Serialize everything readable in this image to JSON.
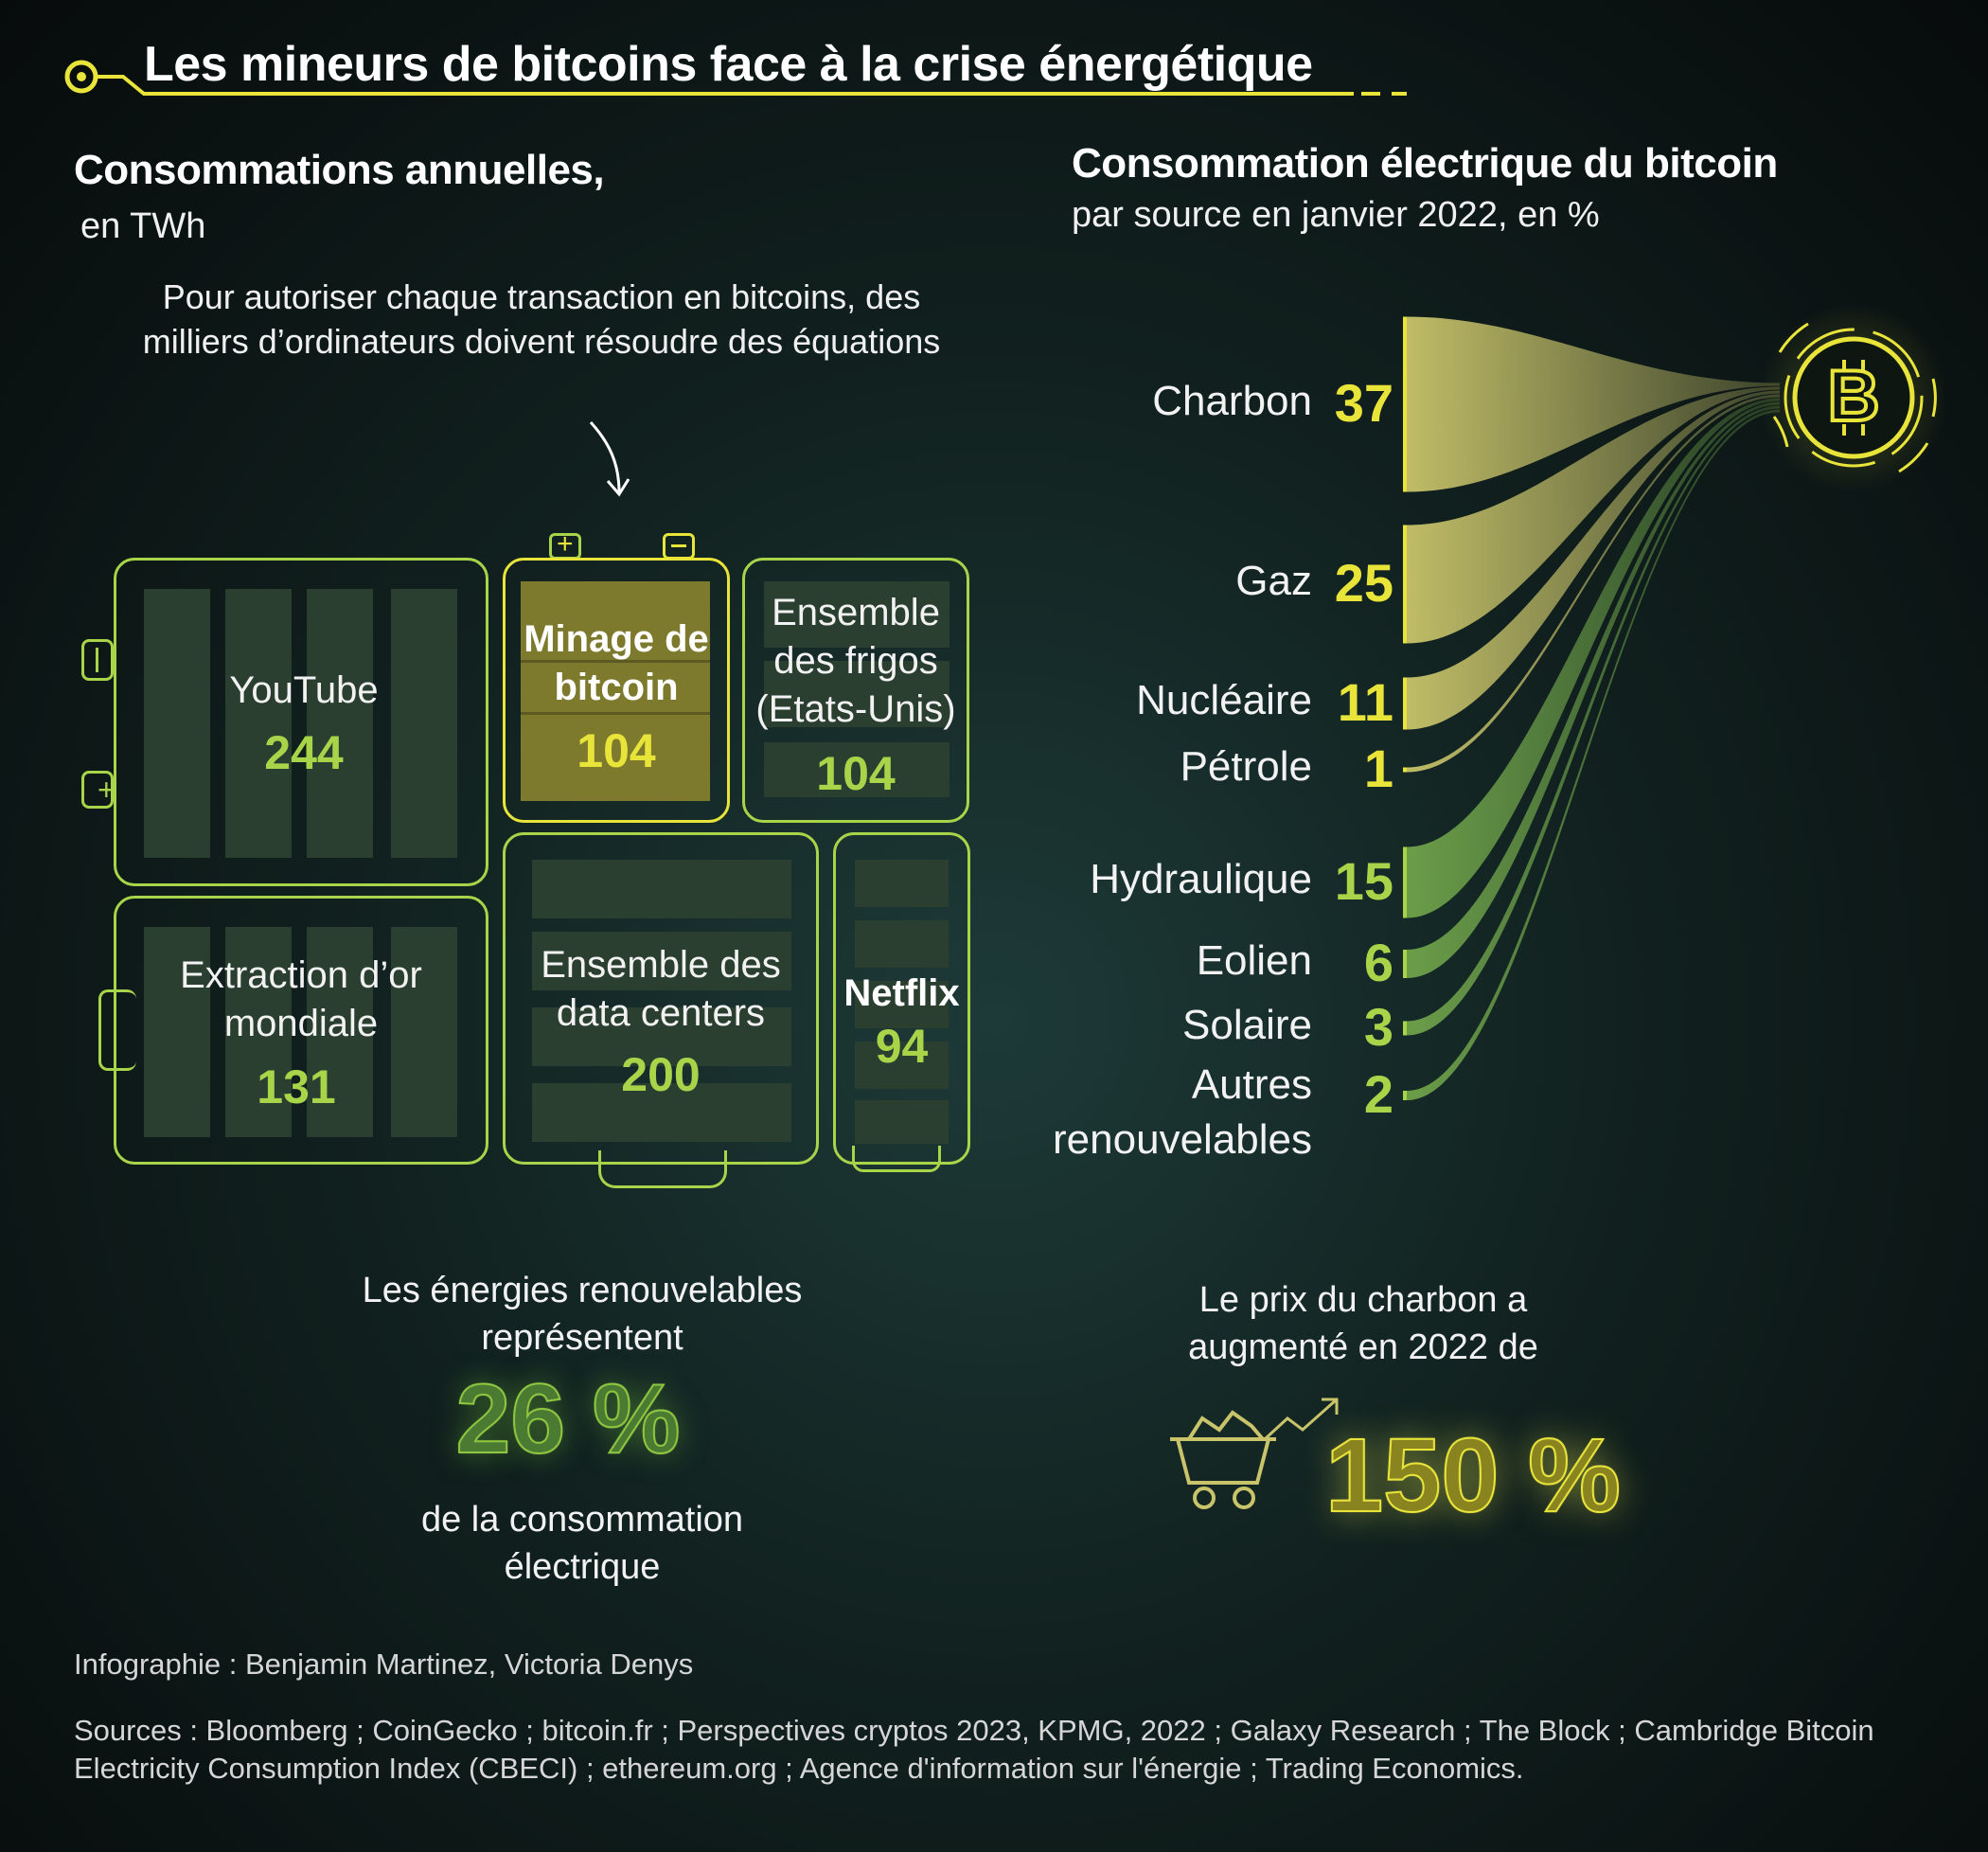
{
  "title": "Les mineurs de bitcoins face à la crise énergétique",
  "left_section": {
    "title": "Consommations annuelles,",
    "unit": "en TWh",
    "annotation": "Pour autoriser chaque transaction en bitcoins, des milliers d’ordinateurs doivent résoudre des équations"
  },
  "right_section": {
    "title": "Consommation électrique du bitcoin",
    "subtitle": "par source en janvier 2022, en %"
  },
  "renewables_note": {
    "before": "Les énergies renouvelables représentent",
    "value": "26 %",
    "after": "de la consommation électrique"
  },
  "coal_note": {
    "before": "Le prix du charbon a augmenté en 2022 de",
    "value": "150 %"
  },
  "credits": "Infographie : Benjamin Martinez, Victoria Denys",
  "sources": "Sources : Bloomberg ; CoinGecko ; bitcoin.fr ; Perspectives cryptos 2023, KPMG, 2022 ; Galaxy Research ; The Block ; Cambridge Bitcoin Electricity Consumption Index (CBECI) ; ethereum.org ; Agence d'information sur l'énergie ; Trading Economics.",
  "colors": {
    "accent_yellow": "#e8e43a",
    "accent_green": "#a8d44a",
    "fossil": "#c9c46a",
    "renewable": "#6fa34a",
    "background": "#0b1413"
  },
  "icons": [
    "bitcoin-icon",
    "mine-cart-icon",
    "trend-arrow-icon",
    "arrow-icon"
  ],
  "chart_data": [
    {
      "type": "bar",
      "title": "Consommations annuelles,",
      "ylabel": "en TWh",
      "categories": [
        "YouTube",
        "Minage de bitcoin",
        "Ensemble des frigos (Etats-Unis)",
        "Extraction d’or mondiale",
        "Ensemble des data centers",
        "Netflix"
      ],
      "values": [
        244,
        104,
        104,
        131,
        200,
        94
      ],
      "value_labels": [
        "244",
        "104",
        "104",
        "131",
        "200",
        "94"
      ],
      "highlight": "Minage de bitcoin"
    },
    {
      "type": "bar",
      "title": "Consommation électrique du bitcoin",
      "subtitle": "par source en janvier 2022, en %",
      "categories": [
        "Charbon",
        "Gaz",
        "Nucléaire",
        "Pétrole",
        "Hydraulique",
        "Eolien",
        "Solaire",
        "Autres renouvelables"
      ],
      "values": [
        37,
        25,
        11,
        1,
        15,
        6,
        3,
        2
      ],
      "value_labels": [
        "37",
        "25",
        "11",
        "1",
        "15",
        "6",
        "3",
        "2"
      ],
      "groups": [
        "fossil",
        "fossil",
        "fossil",
        "fossil",
        "renewable",
        "renewable",
        "renewable",
        "renewable"
      ]
    }
  ]
}
